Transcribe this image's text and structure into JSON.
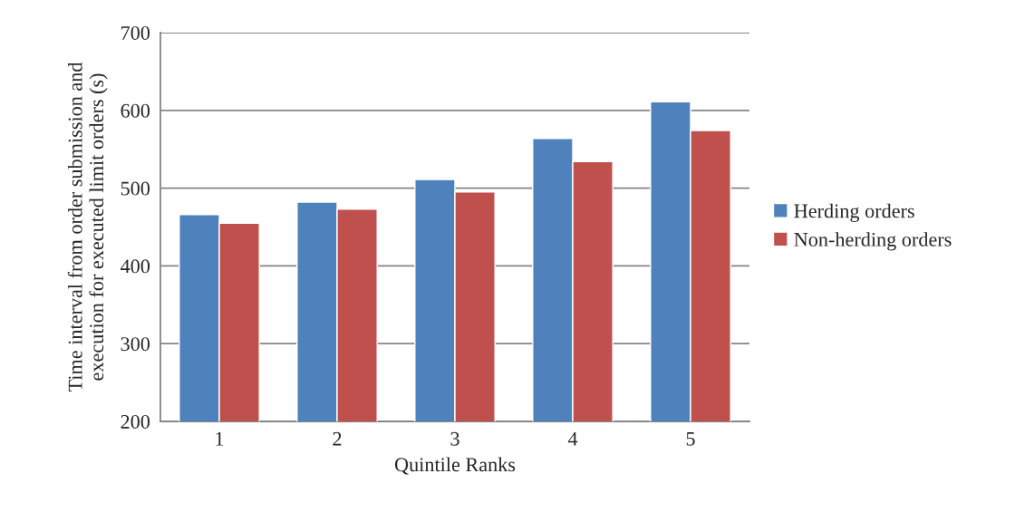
{
  "chart_data": {
    "type": "bar",
    "xlabel": "Quintile Ranks",
    "ylabel": "Time interval from order submission and\nexecution for executed limit orders (s)",
    "categories": [
      "1",
      "2",
      "3",
      "4",
      "5"
    ],
    "series": [
      {
        "name": "Herding orders",
        "color": "#4f81bd",
        "values": [
          466,
          482,
          511,
          564,
          611
        ]
      },
      {
        "name": "Non-herding orders",
        "color": "#c0504d",
        "values": [
          455,
          473,
          495,
          534,
          574
        ]
      }
    ],
    "ylim": [
      200,
      700
    ],
    "yticks": [
      200,
      300,
      400,
      500,
      600,
      700
    ],
    "grid": "y",
    "legend": "right"
  }
}
